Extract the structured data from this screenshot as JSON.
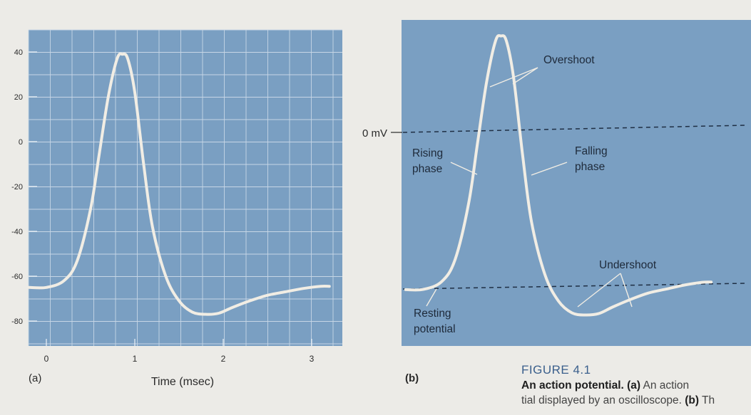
{
  "chart_data": [
    {
      "type": "line",
      "panel_label": "(a)",
      "xlabel": "Time (msec)",
      "ylabel": "",
      "xlim": [
        -0.2,
        3.2
      ],
      "ylim": [
        -87,
        48
      ],
      "x_ticks": [
        "0",
        "1",
        "2",
        "3"
      ],
      "y_ticks": [
        "40",
        "20",
        "0",
        "-20",
        "-40",
        "-60",
        "-80"
      ],
      "grid": true,
      "background_color": "#7a9fc2",
      "line_color": "#f1ede4",
      "series": [
        {
          "x": [
            -0.2,
            0.0,
            0.2,
            0.35,
            0.5,
            0.6,
            0.7,
            0.8,
            0.86,
            0.92,
            1.0,
            1.1,
            1.2,
            1.35,
            1.5,
            1.65,
            1.8,
            1.95,
            2.1,
            2.3,
            2.5,
            2.7,
            2.9,
            3.1,
            3.2
          ],
          "y": [
            -65,
            -65,
            -62,
            -53,
            -30,
            -5,
            20,
            37,
            39,
            37,
            22,
            -10,
            -38,
            -60,
            -71,
            -76,
            -77,
            -76.5,
            -74,
            -71,
            -68.5,
            -67,
            -65.5,
            -64.5,
            -64.5
          ]
        }
      ]
    },
    {
      "type": "line",
      "panel_label": "(b)",
      "xlabel": "",
      "ylabel": "",
      "background_color": "#7a9fc2",
      "line_color": "#f1ede4",
      "reference_lines": [
        {
          "label": "0 mV",
          "y": 0
        },
        {
          "label": "",
          "y": -65
        }
      ],
      "annotations": {
        "overshoot": "Overshoot",
        "rising_1": "Rising",
        "rising_2": "phase",
        "falling_1": "Falling",
        "falling_2": "phase",
        "undershoot": "Undershoot",
        "resting_1": "Resting",
        "resting_2": "potential"
      },
      "series": [
        {
          "x": [
            -0.2,
            0.0,
            0.2,
            0.35,
            0.5,
            0.6,
            0.7,
            0.8,
            0.86,
            0.92,
            1.0,
            1.1,
            1.2,
            1.35,
            1.5,
            1.65,
            1.8,
            1.95,
            2.1,
            2.3,
            2.5,
            2.7,
            2.9,
            3.1,
            3.2
          ],
          "y": [
            -65,
            -65,
            -62,
            -53,
            -30,
            -5,
            20,
            37,
            39,
            37,
            22,
            -10,
            -38,
            -60,
            -71,
            -76,
            -77,
            -76.5,
            -74,
            -71,
            -68.5,
            -67,
            -65.5,
            -64.5,
            -64.5
          ]
        }
      ]
    }
  ],
  "caption": {
    "figure_number": "FIGURE 4.1",
    "title": "An action potential.",
    "part_a_label": "(a)",
    "part_a_text": " An action ",
    "line2_text": "tial displayed by an oscilloscope. ",
    "part_b_label": "(b)",
    "part_b_text": " Th"
  }
}
